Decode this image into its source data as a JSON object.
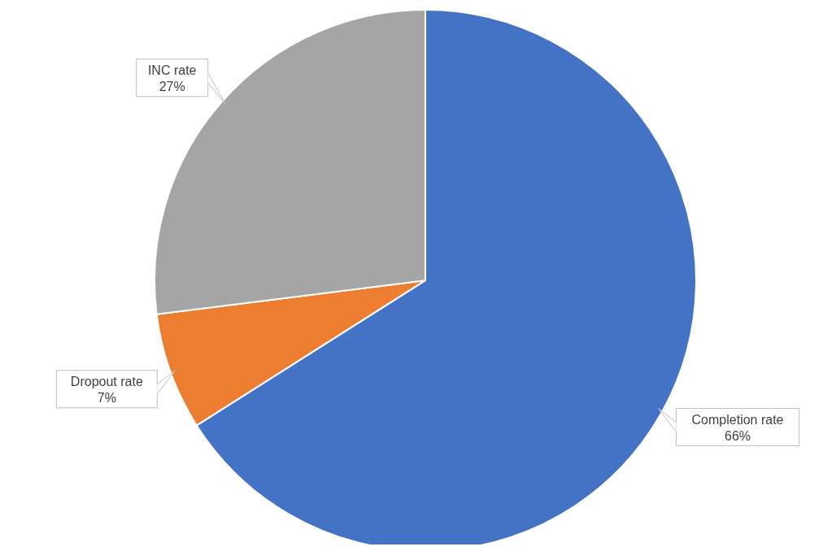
{
  "chart_data": {
    "type": "pie",
    "categories": [
      "Completion rate",
      "Dropout rate",
      "INC rate"
    ],
    "values": [
      66,
      7,
      27
    ],
    "colors": [
      "#4472c4",
      "#ed7d31",
      "#a5a5a5"
    ],
    "value_labels": [
      "66%",
      "7%",
      "27%"
    ]
  }
}
